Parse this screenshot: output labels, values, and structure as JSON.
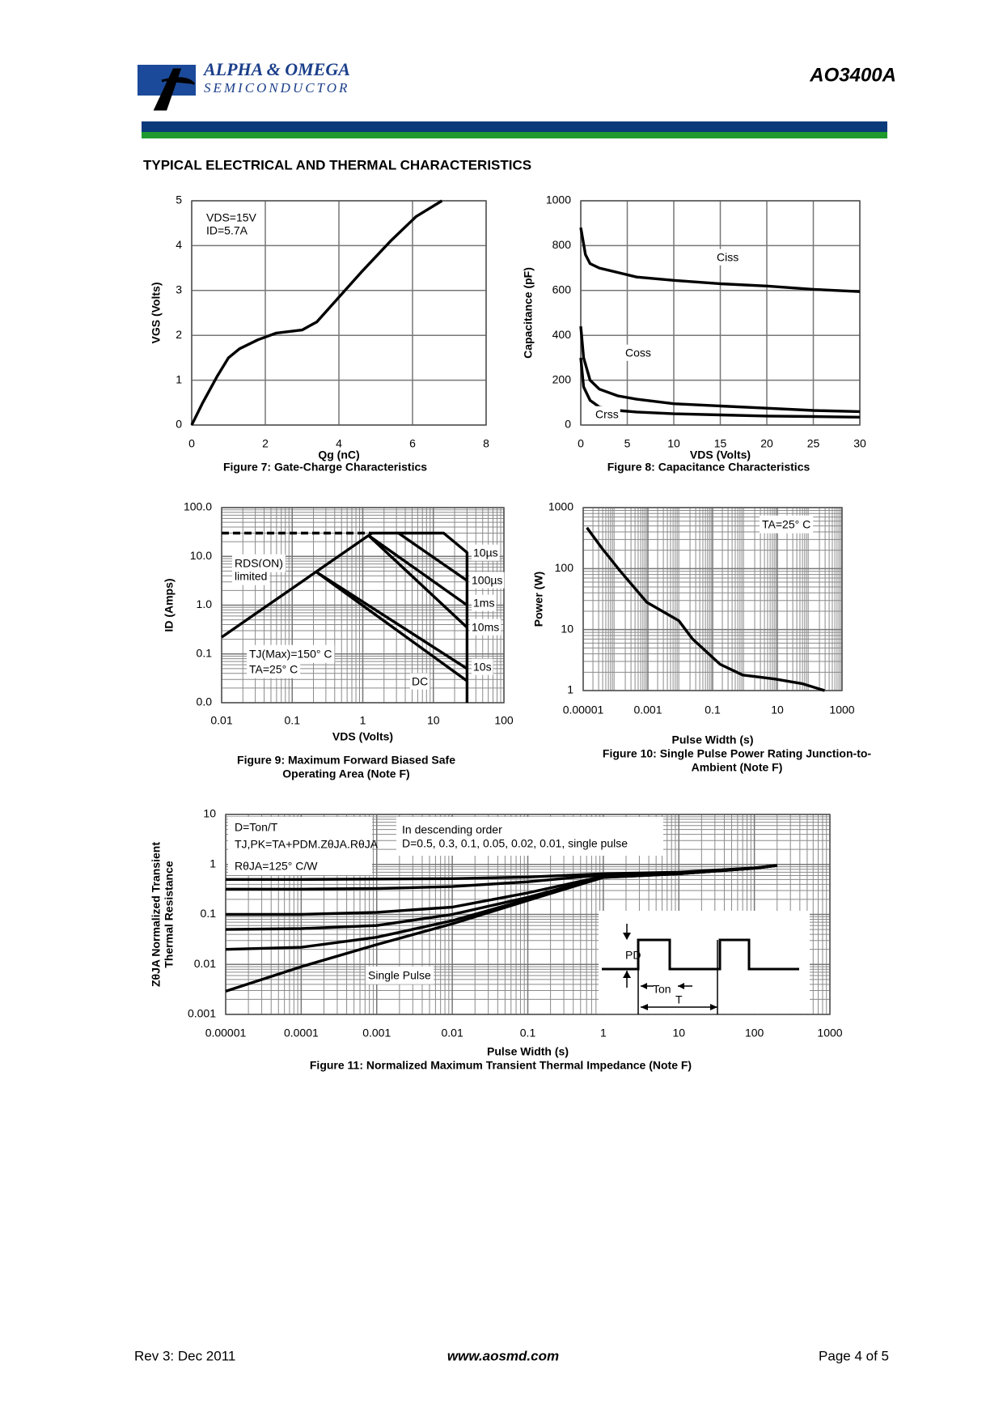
{
  "header": {
    "company": "ALPHA & OMEGA",
    "division": "SEMICONDUCTOR",
    "part": "AO3400A"
  },
  "section_title": "TYPICAL ELECTRICAL AND THERMAL CHARACTERISTICS",
  "chart_data": [
    {
      "type": "line",
      "title": "Figure 7: Gate-Charge Characteristics",
      "xlabel": "Qg (nC)",
      "ylabel": "VGS (Volts)",
      "xlim": [
        0,
        8
      ],
      "ylim": [
        0,
        5
      ],
      "xticks": [
        0,
        2,
        4,
        6,
        8
      ],
      "yticks": [
        0,
        1,
        2,
        3,
        4,
        5
      ],
      "grid": true,
      "annotations": [
        "VDS=15V",
        "ID=5.7A"
      ],
      "series": [
        {
          "color": "#000000",
          "x": [
            0,
            0.3,
            0.7,
            1,
            1.3,
            1.8,
            2.3,
            3,
            3.4,
            4,
            4.6,
            5.4,
            6.1,
            6.8
          ],
          "values": [
            0,
            0.5,
            1.1,
            1.5,
            1.7,
            1.9,
            2.05,
            2.12,
            2.3,
            2.85,
            3.4,
            4.1,
            4.65,
            5
          ]
        }
      ]
    },
    {
      "type": "line",
      "title": "Figure 8: Capacitance Characteristics",
      "xlabel": "VDS (Volts)",
      "ylabel": "Capacitance (pF)",
      "xlim": [
        0,
        30
      ],
      "ylim": [
        0,
        1000
      ],
      "xticks": [
        0,
        5,
        10,
        15,
        20,
        25,
        30
      ],
      "yticks": [
        0,
        200,
        400,
        600,
        800,
        1000
      ],
      "grid": true,
      "series": [
        {
          "name": "Ciss",
          "color": "#000000",
          "x": [
            0,
            0.5,
            1,
            2,
            4,
            6,
            10,
            15,
            20,
            25,
            30
          ],
          "values": [
            880,
            760,
            720,
            700,
            680,
            660,
            645,
            630,
            620,
            605,
            595
          ]
        },
        {
          "name": "Coss",
          "color": "#000000",
          "x": [
            0,
            0.3,
            1,
            2,
            4,
            6,
            10,
            15,
            20,
            25,
            30
          ],
          "values": [
            440,
            300,
            200,
            160,
            130,
            115,
            95,
            85,
            75,
            65,
            60
          ]
        },
        {
          "name": "Crss",
          "color": "#000000",
          "x": [
            0,
            0.3,
            1,
            2,
            4,
            6,
            10,
            15,
            20,
            25,
            30
          ],
          "values": [
            300,
            170,
            110,
            80,
            65,
            58,
            50,
            45,
            40,
            38,
            35
          ]
        }
      ]
    },
    {
      "type": "line",
      "title": [
        "Figure 9: Maximum Forward Biased Safe",
        "Operating Area (Note F)"
      ],
      "xlabel": "VDS (Volts)",
      "ylabel": "ID (Amps)",
      "xlog": true,
      "ylog": true,
      "xlim": [
        0.01,
        100
      ],
      "ylim": [
        0.01,
        100
      ],
      "xticks": [
        0.01,
        0.1,
        1,
        10,
        100
      ],
      "yticks": [
        {
          "value": 0.01,
          "label": "0.0"
        },
        0.1,
        {
          "value": 1,
          "label": "1.0"
        },
        {
          "value": 10,
          "label": "10.0"
        },
        {
          "value": 100,
          "label": "100.0"
        }
      ],
      "grid": true,
      "annotations": [
        "RDS(ON)",
        "limited",
        "TJ(Max)=150° C",
        "TA=25° C"
      ],
      "series": [
        {
          "name": "10µs",
          "color": "#000000",
          "x": [
            1.35,
            14,
            30,
            30
          ],
          "values": [
            30,
            30,
            12,
            0.01
          ]
        },
        {
          "name": "100µs",
          "color": "#000000",
          "x": [
            3.2,
            30
          ],
          "values": [
            30,
            3.2
          ]
        },
        {
          "name": "1ms",
          "color": "#000000",
          "x": [
            1.2,
            30
          ],
          "values": [
            27,
            1.0
          ]
        },
        {
          "name": "10ms",
          "color": "#000000",
          "x": [
            1.2,
            30
          ],
          "values": [
            27,
            0.35
          ]
        },
        {
          "name": "10s",
          "color": "#000000",
          "x": [
            0.22,
            30
          ],
          "values": [
            4.8,
            0.05
          ]
        },
        {
          "name": "DC",
          "color": "#000000",
          "x": [
            0.22,
            30
          ],
          "values": [
            4.8,
            0.028
          ]
        },
        {
          "color": "#000000",
          "x": [
            0.01,
            1.35
          ],
          "values": [
            0.22,
            30
          ]
        },
        {
          "color": "#000000",
          "dashed": true,
          "x": [
            0.01,
            1.35
          ],
          "values": [
            30,
            30
          ]
        }
      ]
    },
    {
      "type": "line",
      "title": [
        "Figure 10: Single Pulse Power Rating Junction-to-",
        "Ambient (Note F)"
      ],
      "xlabel": "Pulse Width (s)",
      "ylabel": "Power (W)",
      "xlog": true,
      "ylog": true,
      "xlim": [
        1e-05,
        1000
      ],
      "ylim": [
        1,
        1000
      ],
      "xticks": [
        1e-05,
        0.001,
        0.1,
        10,
        1000
      ],
      "yticks": [
        1,
        10,
        100,
        1000
      ],
      "grid": true,
      "annotations": [
        "TA=25° C"
      ],
      "series": [
        {
          "color": "#000000",
          "x": [
            1.3e-05,
            3.7e-05,
            0.000135,
            0.00093,
            0.009,
            0.024,
            0.17,
            0.85,
            8.3,
            58,
            290
          ],
          "values": [
            470,
            220,
            93,
            28,
            14,
            7,
            2.7,
            1.8,
            1.55,
            1.3,
            1.0
          ]
        }
      ]
    },
    {
      "type": "line",
      "title": "Figure 11: Normalized Maximum Transient Thermal Impedance (Note F)",
      "xlabel": "Pulse Width (s)",
      "ylabel": [
        "ZθJA Normalized Transient",
        "Thermal Resistance"
      ],
      "xlog": true,
      "ylog": true,
      "xlim": [
        1e-05,
        1000
      ],
      "ylim": [
        0.001,
        10
      ],
      "xticks": [
        1e-05,
        0.0001,
        0.001,
        0.01,
        0.1,
        1,
        10,
        100,
        1000
      ],
      "yticks": [
        0.001,
        0.01,
        0.1,
        1,
        10
      ],
      "grid": true,
      "annotations": [
        "D=Ton/T",
        "TJ,PK=TA+PDM.ZθJA.RθJA",
        "RθJA=125° C/W",
        "In descending order",
        "D=0.5, 0.3, 0.1, 0.05, 0.02, 0.01, single pulse",
        "Single Pulse",
        "PD",
        "Ton",
        "T"
      ],
      "series": [
        {
          "color": "#000000",
          "x": [
            1e-05,
            0.0001,
            0.001,
            0.01,
            0.1,
            1,
            10,
            100,
            200
          ],
          "values": [
            0.5,
            0.5,
            0.51,
            0.52,
            0.56,
            0.65,
            0.7,
            0.85,
            0.95
          ]
        },
        {
          "color": "#000000",
          "x": [
            1e-05,
            0.0001,
            0.001,
            0.01,
            0.1,
            1,
            10,
            100,
            200
          ],
          "values": [
            0.32,
            0.32,
            0.33,
            0.36,
            0.45,
            0.62,
            0.68,
            0.85,
            0.95
          ]
        },
        {
          "color": "#000000",
          "x": [
            1e-05,
            0.0001,
            0.001,
            0.01,
            0.1,
            1,
            10,
            100,
            200
          ],
          "values": [
            0.1,
            0.1,
            0.11,
            0.14,
            0.27,
            0.58,
            0.66,
            0.84,
            0.95
          ]
        },
        {
          "color": "#000000",
          "x": [
            1e-05,
            0.0001,
            0.001,
            0.01,
            0.1,
            1,
            10,
            100,
            200
          ],
          "values": [
            0.05,
            0.052,
            0.06,
            0.1,
            0.22,
            0.56,
            0.65,
            0.84,
            0.95
          ]
        },
        {
          "color": "#000000",
          "x": [
            1e-05,
            0.0001,
            0.001,
            0.01,
            0.1,
            1,
            10,
            100,
            200
          ],
          "values": [
            0.02,
            0.022,
            0.035,
            0.075,
            0.2,
            0.55,
            0.65,
            0.84,
            0.95
          ]
        },
        {
          "color": "#000000",
          "x": [
            1e-05,
            0.0001,
            0.001,
            0.01,
            0.1,
            1,
            10,
            100,
            200
          ],
          "values": [
            0.0029,
            0.009,
            0.025,
            0.065,
            0.19,
            0.55,
            0.65,
            0.84,
            0.95
          ]
        }
      ]
    }
  ],
  "footer": {
    "revision": "Rev 3: Dec 2011",
    "website": "www.aosmd.com",
    "page": "Page 4 of 5"
  }
}
